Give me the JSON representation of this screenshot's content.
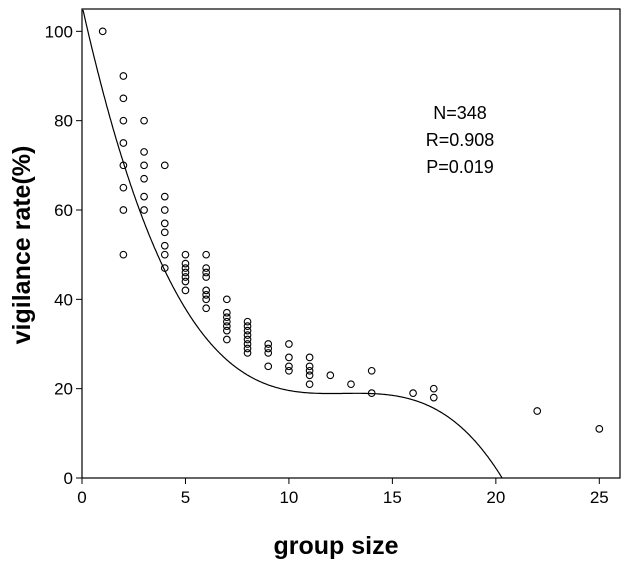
{
  "chart_data": {
    "type": "scatter",
    "title": "",
    "xlabel": "group size",
    "ylabel": "vigilance rate(%)",
    "xlim": [
      0,
      26
    ],
    "ylim": [
      0,
      105
    ],
    "x_ticks": [
      0,
      5,
      10,
      15,
      20,
      25
    ],
    "y_ticks": [
      0,
      20,
      40,
      60,
      80,
      100
    ],
    "grid": false,
    "annotations": [
      "N=348",
      "R=0.908",
      "P=0.019"
    ],
    "points": [
      [
        1,
        100
      ],
      [
        2,
        90
      ],
      [
        2,
        85
      ],
      [
        2,
        80
      ],
      [
        2,
        75
      ],
      [
        2,
        70
      ],
      [
        2,
        65
      ],
      [
        2,
        60
      ],
      [
        2,
        50
      ],
      [
        3,
        80
      ],
      [
        3,
        73
      ],
      [
        3,
        70
      ],
      [
        3,
        67
      ],
      [
        3,
        63
      ],
      [
        3,
        60
      ],
      [
        4,
        70
      ],
      [
        4,
        63
      ],
      [
        4,
        60
      ],
      [
        4,
        57
      ],
      [
        4,
        55
      ],
      [
        4,
        52
      ],
      [
        4,
        50
      ],
      [
        4,
        47
      ],
      [
        5,
        50
      ],
      [
        5,
        48
      ],
      [
        5,
        47
      ],
      [
        5,
        46
      ],
      [
        5,
        45
      ],
      [
        5,
        44
      ],
      [
        5,
        42
      ],
      [
        6,
        50
      ],
      [
        6,
        47
      ],
      [
        6,
        46
      ],
      [
        6,
        45
      ],
      [
        6,
        42
      ],
      [
        6,
        41
      ],
      [
        6,
        40
      ],
      [
        6,
        38
      ],
      [
        7,
        40
      ],
      [
        7,
        37
      ],
      [
        7,
        36
      ],
      [
        7,
        35
      ],
      [
        7,
        34
      ],
      [
        7,
        33
      ],
      [
        7,
        31
      ],
      [
        8,
        35
      ],
      [
        8,
        34
      ],
      [
        8,
        33
      ],
      [
        8,
        32
      ],
      [
        8,
        31
      ],
      [
        8,
        30
      ],
      [
        8,
        29
      ],
      [
        8,
        28
      ],
      [
        9,
        30
      ],
      [
        9,
        29
      ],
      [
        9,
        28
      ],
      [
        9,
        25
      ],
      [
        10,
        30
      ],
      [
        10,
        27
      ],
      [
        10,
        25
      ],
      [
        10,
        24
      ],
      [
        11,
        27
      ],
      [
        11,
        25
      ],
      [
        11,
        24
      ],
      [
        11,
        23
      ],
      [
        11,
        21
      ],
      [
        12,
        23
      ],
      [
        13,
        21
      ],
      [
        14,
        24
      ],
      [
        14,
        19
      ],
      [
        16,
        19
      ],
      [
        17,
        20
      ],
      [
        17,
        18
      ],
      [
        22,
        15
      ],
      [
        25,
        11
      ]
    ],
    "fit": {
      "type": "cubic",
      "coefficients": [
        105.8,
        -20.7,
        1.64,
        -0.0432
      ]
    }
  }
}
